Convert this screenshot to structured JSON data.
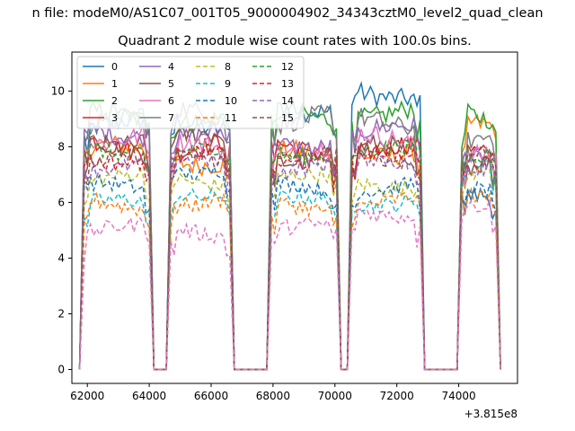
{
  "figure": {
    "suptitle": "n file: modeM0/AS1C07_001T05_9000004902_34343cztM0_level2_quad_clean"
  },
  "chart_data": {
    "type": "line",
    "title": "Quadrant 2 module wise count rates with 100.0s bins.",
    "xlabel": "",
    "ylabel": "",
    "x_offset_label": "+3.815e8",
    "x_ticks": [
      "62000",
      "64000",
      "66000",
      "68000",
      "70000",
      "72000",
      "74000"
    ],
    "y_ticks": [
      "0",
      "2",
      "4",
      "6",
      "8",
      "10"
    ],
    "xlim": [
      61500,
      75900
    ],
    "ylim": [
      -0.5,
      11.4
    ],
    "grid": false,
    "legend_position": "top-left",
    "legend_columns": 4,
    "colors": [
      "#1f77b4",
      "#ff7f0e",
      "#2ca02c",
      "#d62728",
      "#9467bd",
      "#8c564b",
      "#e377c2",
      "#7f7f7f",
      "#bcbd22",
      "#17becf"
    ],
    "segments": [
      [
        61900,
        64000
      ],
      [
        64700,
        66600
      ],
      [
        67950,
        70050
      ],
      [
        70550,
        72750
      ],
      [
        74100,
        75200
      ]
    ],
    "gap_value": 0,
    "series": [
      {
        "name": "0",
        "levels": [
          8.7,
          8.9,
          9.0,
          10.0,
          6.0
        ],
        "dashed": false
      },
      {
        "name": "1",
        "levels": [
          7.8,
          7.6,
          7.6,
          7.9,
          8.6
        ],
        "dashed": false
      },
      {
        "name": "2",
        "levels": [
          9.0,
          9.1,
          9.1,
          9.3,
          9.0
        ],
        "dashed": false
      },
      {
        "name": "3",
        "levels": [
          8.0,
          8.0,
          8.0,
          7.9,
          7.9
        ],
        "dashed": false
      },
      {
        "name": "4",
        "levels": [
          8.6,
          8.3,
          8.2,
          8.5,
          7.8
        ],
        "dashed": false
      },
      {
        "name": "5",
        "levels": [
          8.3,
          8.2,
          7.7,
          7.8,
          7.6
        ],
        "dashed": false
      },
      {
        "name": "6",
        "levels": [
          8.4,
          7.9,
          7.9,
          8.2,
          7.8
        ],
        "dashed": false
      },
      {
        "name": "7",
        "levels": [
          9.0,
          9.2,
          8.9,
          8.9,
          8.2
        ],
        "dashed": false
      },
      {
        "name": "8",
        "levels": [
          6.8,
          6.8,
          6.8,
          6.7,
          6.9
        ],
        "dashed": true
      },
      {
        "name": "9",
        "levels": [
          5.9,
          6.4,
          6.0,
          6.1,
          7.3
        ],
        "dashed": true
      },
      {
        "name": "10",
        "levels": [
          6.5,
          7.2,
          6.5,
          6.6,
          6.4
        ],
        "dashed": true
      },
      {
        "name": "11",
        "levels": [
          5.9,
          6.0,
          5.9,
          6.0,
          6.3
        ],
        "dashed": true
      },
      {
        "name": "12",
        "levels": [
          7.9,
          7.8,
          7.8,
          7.8,
          7.9
        ],
        "dashed": true
      },
      {
        "name": "13",
        "levels": [
          7.6,
          7.6,
          7.6,
          7.6,
          7.7
        ],
        "dashed": true
      },
      {
        "name": "14",
        "levels": [
          7.4,
          7.4,
          7.3,
          7.4,
          7.3
        ],
        "dashed": true
      },
      {
        "name": "15",
        "levels": [
          7.6,
          7.6,
          7.6,
          7.6,
          7.7
        ],
        "dashed": true
      },
      {
        "name": "",
        "levels": [
          5.0,
          5.0,
          5.0,
          5.7,
          5.7
        ],
        "dashed": true
      }
    ]
  }
}
